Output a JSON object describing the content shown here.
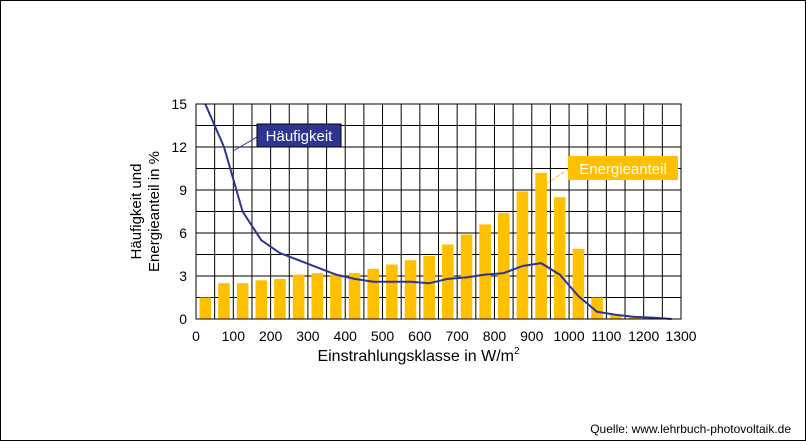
{
  "chart_data": {
    "type": "bar",
    "xlabel": "Einstrahlungsklasse  in W/m",
    "xlabel_sup": "2",
    "ylabel_line1": "Häufigkeit und",
    "ylabel_line2": "Energieanteil  in %",
    "xlim": [
      0,
      1300
    ],
    "ylim": [
      0,
      15
    ],
    "x_ticks": [
      "0",
      "100",
      "200",
      "300",
      "400",
      "500",
      "600",
      "700",
      "800",
      "900",
      "1000",
      "1100",
      "1200",
      "1300"
    ],
    "y_ticks": [
      "0",
      "3",
      "6",
      "9",
      "12",
      "15"
    ],
    "grid": true,
    "series": [
      {
        "name": "Energieanteil",
        "kind": "bar",
        "color": "#ffc000",
        "x": [
          25,
          75,
          125,
          175,
          225,
          275,
          325,
          375,
          425,
          475,
          525,
          575,
          625,
          675,
          725,
          775,
          825,
          875,
          925,
          975,
          1025,
          1075,
          1125,
          1175
        ],
        "values": [
          1.5,
          2.5,
          2.5,
          2.7,
          2.8,
          3.1,
          3.2,
          3.1,
          3.2,
          3.5,
          3.8,
          4.1,
          4.4,
          5.2,
          5.9,
          6.6,
          7.4,
          8.9,
          10.2,
          8.5,
          4.9,
          1.5,
          0.3,
          0.1
        ]
      },
      {
        "name": "Häufigkeit",
        "kind": "line",
        "color": "#2e3590",
        "x": [
          25,
          75,
          125,
          175,
          225,
          275,
          325,
          375,
          425,
          475,
          525,
          575,
          625,
          675,
          725,
          775,
          825,
          875,
          925,
          975,
          1025,
          1075,
          1125,
          1175,
          1225,
          1275
        ],
        "values": [
          15,
          12,
          7.5,
          5.5,
          4.6,
          4.1,
          3.6,
          3.1,
          2.8,
          2.6,
          2.6,
          2.6,
          2.5,
          2.8,
          2.9,
          3.1,
          3.2,
          3.7,
          3.9,
          3.1,
          1.6,
          0.5,
          0.3,
          0.15,
          0.1,
          0
        ]
      }
    ],
    "source": "Quelle: www.lehrbuch-photovoltaik.de"
  }
}
